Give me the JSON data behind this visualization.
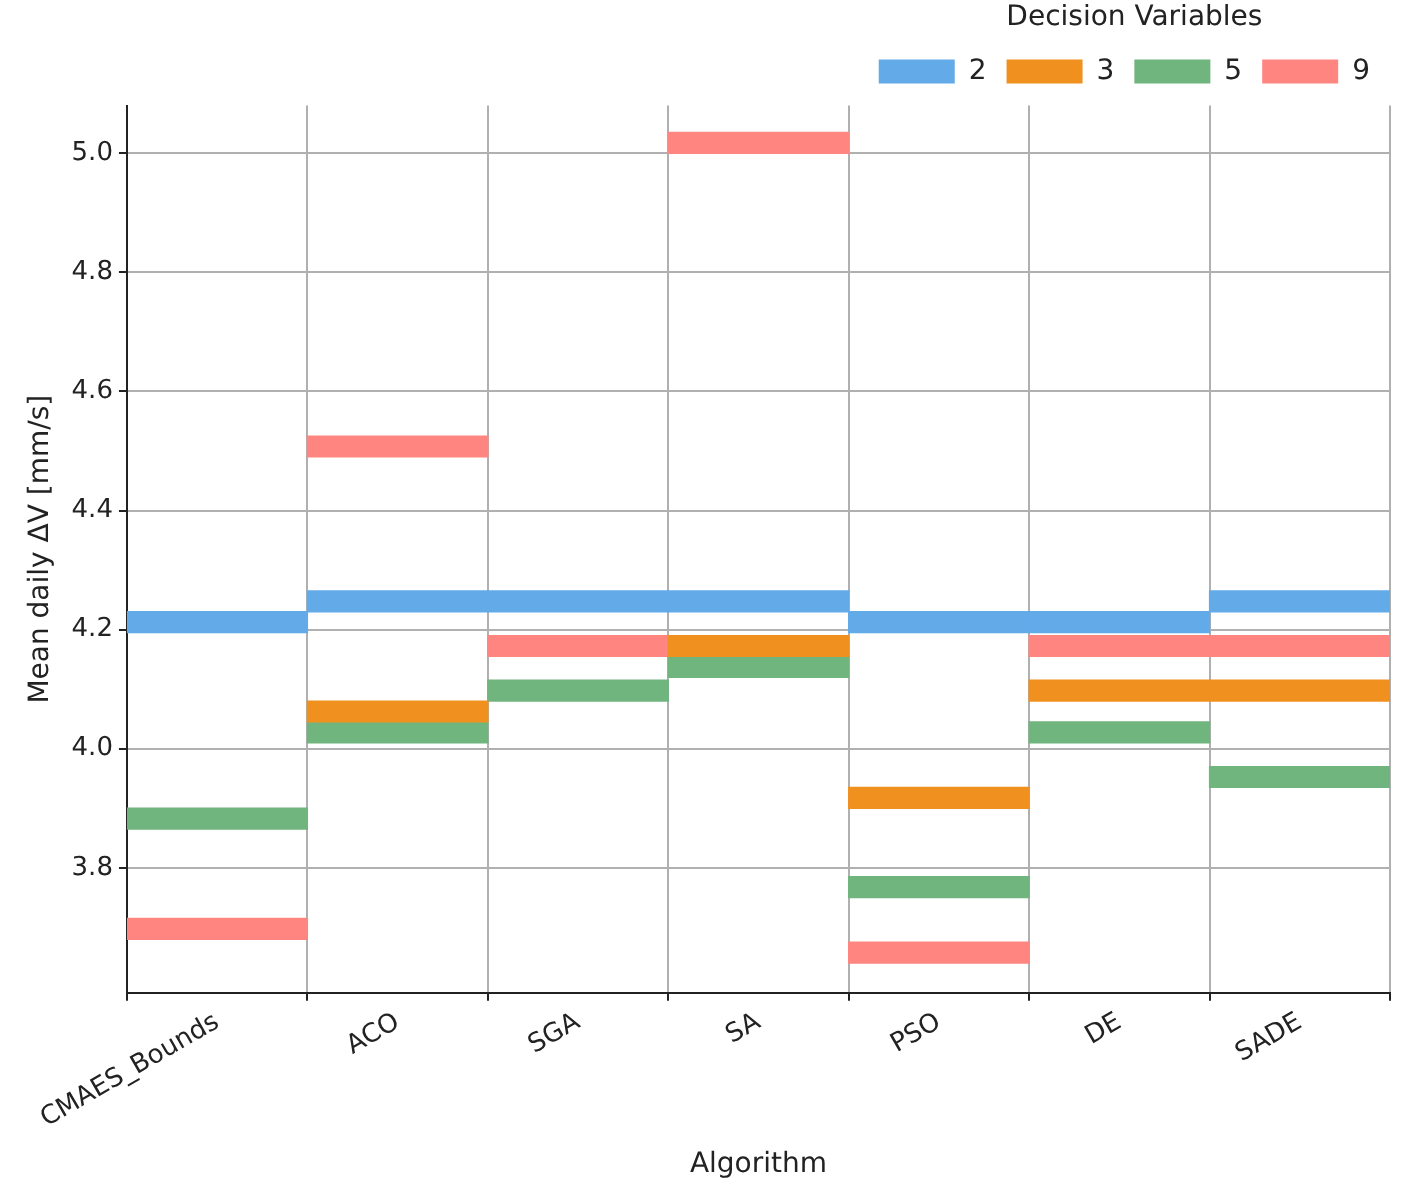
{
  "chart_data": {
    "type": "bar",
    "xlabel": "Algorithm",
    "ylabel": "Mean daily ΔV [mm/s]",
    "legend_title": "Decision Variables",
    "categories": [
      "CMAES_Bounds",
      "ACO",
      "SGA",
      "SA",
      "PSO",
      "DE",
      "SADE"
    ],
    "series": [
      {
        "name": "2",
        "color": "#62aae8",
        "base": [
          4.195,
          4.23,
          4.23,
          4.23,
          4.195,
          4.195,
          4.23
        ],
        "values": [
          0.035,
          0.035,
          0.035,
          0.035,
          0.035,
          0.035,
          0.035
        ]
      },
      {
        "name": "3",
        "color": "#f0901f",
        "base": [
          null,
          4.045,
          null,
          4.155,
          3.9,
          4.08,
          4.08
        ],
        "values": [
          null,
          0.035,
          null,
          0.035,
          0.035,
          0.035,
          0.035
        ]
      },
      {
        "name": "5",
        "color": "#70b47e",
        "base": [
          3.865,
          4.01,
          4.08,
          4.12,
          3.75,
          4.01,
          3.935
        ],
        "values": [
          0.035,
          0.035,
          0.035,
          0.035,
          0.035,
          0.035,
          0.035
        ]
      },
      {
        "name": "9",
        "color": "#ff8680",
        "base": [
          3.68,
          4.49,
          4.155,
          5.0,
          3.64,
          4.155,
          4.155
        ],
        "values": [
          0.035,
          0.035,
          0.035,
          0.035,
          0.035,
          0.035,
          0.035
        ]
      }
    ],
    "ylim": [
      3.59,
      5.08
    ],
    "yticks": [
      3.8,
      {
        "value": 4.0,
        "label": "4.0"
      },
      4.2,
      4.4,
      4.6,
      4.8,
      {
        "value": 5.0,
        "label": "5.0"
      }
    ],
    "grid": true,
    "legend": "top right"
  }
}
